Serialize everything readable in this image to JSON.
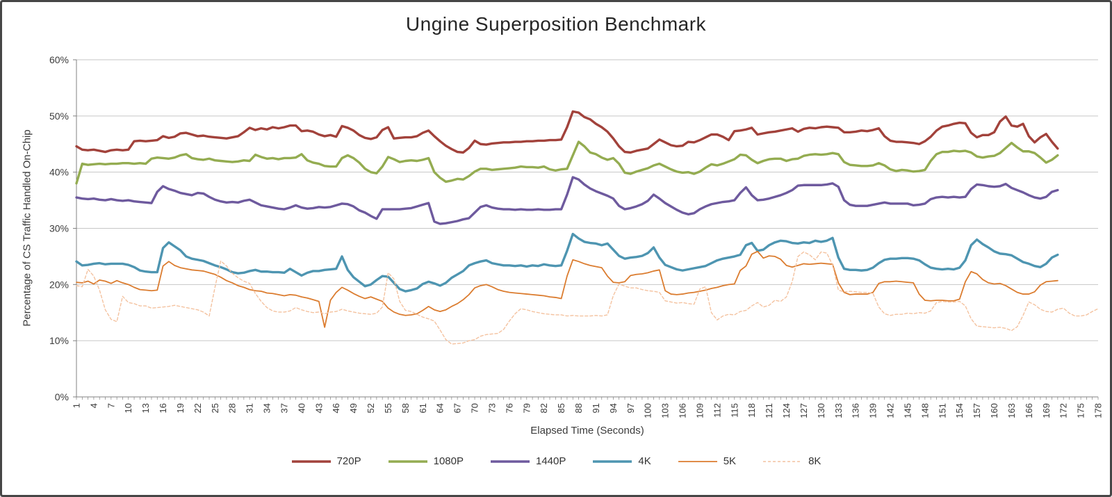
{
  "chart_data": {
    "type": "line",
    "title": "Ungine Superposition Benchmark",
    "xlabel": "Elapsed Time (Seconds)",
    "ylabel": "Percentage of CS Traffic Handled On-Chip",
    "ylim": [
      0,
      60
    ],
    "y_tick_labels": [
      "0%",
      "10%",
      "20%",
      "30%",
      "40%",
      "50%",
      "60%"
    ],
    "x_ticks": {
      "start": 1,
      "end": 178,
      "step": 3
    },
    "x_count": 178,
    "grid": "horizontal",
    "legend_position": "bottom",
    "colors": {
      "grid": "#C6C6C6",
      "axis": "#808080",
      "tick_text": "#3B3B3B",
      "title_text": "#262626",
      "frame_border": "#464646",
      "background": "#FFFFFF"
    },
    "series": [
      {
        "name": "720P",
        "color": "#A2423B",
        "width": 3.4,
        "dash": null,
        "values": [
          44.6,
          44.0,
          43.9,
          44.0,
          43.8,
          43.6,
          43.9,
          44.0,
          43.9,
          44.0,
          45.5,
          45.6,
          45.5,
          45.6,
          45.7,
          46.4,
          46.1,
          46.3,
          46.9,
          47.0,
          46.7,
          46.4,
          46.5,
          46.3,
          46.2,
          46.1,
          46.0,
          46.2,
          46.4,
          47.1,
          47.9,
          47.5,
          47.8,
          47.6,
          48.0,
          47.8,
          48.0,
          48.3,
          48.3,
          47.3,
          47.4,
          47.2,
          46.7,
          46.4,
          46.6,
          46.3,
          48.2,
          47.9,
          47.4,
          46.6,
          46.1,
          45.9,
          46.2,
          47.5,
          48.0,
          46.0,
          46.1,
          46.2,
          46.2,
          46.4,
          47.0,
          47.4,
          46.4,
          45.5,
          44.7,
          44.1,
          43.6,
          43.5,
          44.3,
          45.6,
          45.0,
          44.9,
          45.1,
          45.2,
          45.3,
          45.3,
          45.4,
          45.4,
          45.5,
          45.5,
          45.6,
          45.6,
          45.7,
          45.7,
          45.8,
          48.0,
          50.8,
          50.6,
          49.8,
          49.4,
          48.6,
          48.0,
          47.2,
          46.0,
          44.6,
          43.6,
          43.5,
          43.8,
          44.0,
          44.2,
          45.0,
          45.8,
          45.3,
          44.8,
          44.6,
          44.7,
          45.4,
          45.3,
          45.7,
          46.2,
          46.7,
          46.7,
          46.3,
          45.7,
          47.3,
          47.4,
          47.6,
          47.9,
          46.7,
          46.9,
          47.1,
          47.2,
          47.4,
          47.6,
          47.8,
          47.2,
          47.7,
          47.9,
          47.8,
          48.0,
          48.1,
          48.0,
          47.9,
          47.1,
          47.1,
          47.2,
          47.4,
          47.3,
          47.5,
          47.8,
          46.4,
          45.6,
          45.4,
          45.4,
          45.3,
          45.2,
          45.0,
          45.5,
          46.3,
          47.4,
          48.1,
          48.3,
          48.6,
          48.8,
          48.7,
          47.0,
          46.2,
          46.6,
          46.6,
          47.1,
          49.0,
          49.9,
          48.3,
          48.1,
          48.6,
          46.4,
          45.3,
          46.2,
          46.8,
          45.4,
          44.2
        ]
      },
      {
        "name": "1080P",
        "color": "#94AC51",
        "width": 3.4,
        "dash": null,
        "values": [
          38.0,
          41.5,
          41.3,
          41.4,
          41.5,
          41.4,
          41.5,
          41.5,
          41.6,
          41.6,
          41.5,
          41.6,
          41.5,
          42.4,
          42.6,
          42.5,
          42.4,
          42.6,
          43.0,
          43.2,
          42.5,
          42.3,
          42.2,
          42.4,
          42.1,
          42.0,
          41.9,
          41.8,
          41.9,
          42.1,
          42.0,
          43.1,
          42.7,
          42.4,
          42.5,
          42.3,
          42.5,
          42.5,
          42.6,
          43.2,
          42.1,
          41.7,
          41.5,
          41.1,
          41.0,
          41.0,
          42.5,
          43.0,
          42.5,
          41.7,
          40.6,
          40.0,
          39.8,
          41.0,
          42.7,
          42.3,
          41.8,
          42.0,
          42.1,
          42.0,
          42.2,
          42.5,
          40.0,
          39.0,
          38.3,
          38.5,
          38.8,
          38.7,
          39.3,
          40.1,
          40.6,
          40.6,
          40.4,
          40.5,
          40.6,
          40.7,
          40.8,
          41.0,
          40.9,
          40.9,
          40.8,
          41.0,
          40.5,
          40.3,
          40.5,
          40.6,
          43.0,
          45.4,
          44.6,
          43.5,
          43.2,
          42.6,
          42.2,
          42.5,
          41.5,
          39.9,
          39.7,
          40.1,
          40.4,
          40.7,
          41.2,
          41.5,
          41.0,
          40.5,
          40.1,
          39.9,
          40.0,
          39.7,
          40.1,
          40.8,
          41.4,
          41.2,
          41.5,
          41.9,
          42.3,
          43.1,
          43.0,
          42.2,
          41.6,
          42.0,
          42.3,
          42.4,
          42.4,
          42.0,
          42.3,
          42.4,
          42.9,
          43.1,
          43.2,
          43.1,
          43.2,
          43.4,
          43.2,
          41.8,
          41.3,
          41.2,
          41.1,
          41.1,
          41.2,
          41.6,
          41.2,
          40.5,
          40.2,
          40.4,
          40.3,
          40.1,
          40.2,
          40.4,
          42.0,
          43.2,
          43.6,
          43.6,
          43.8,
          43.7,
          43.8,
          43.5,
          42.8,
          42.6,
          42.8,
          42.9,
          43.4,
          44.3,
          45.2,
          44.4,
          43.7,
          43.7,
          43.4,
          42.6,
          41.7,
          42.2,
          43.0
        ]
      },
      {
        "name": "1440P",
        "color": "#6E5A9E",
        "width": 3.4,
        "dash": null,
        "values": [
          35.5,
          35.3,
          35.2,
          35.3,
          35.1,
          35.0,
          35.2,
          35.0,
          34.9,
          35.0,
          34.8,
          34.7,
          34.6,
          34.5,
          36.5,
          37.5,
          37.0,
          36.7,
          36.3,
          36.1,
          35.9,
          36.3,
          36.2,
          35.6,
          35.1,
          34.8,
          34.6,
          34.7,
          34.6,
          34.9,
          35.1,
          34.6,
          34.1,
          33.9,
          33.7,
          33.5,
          33.4,
          33.7,
          34.1,
          33.7,
          33.5,
          33.6,
          33.8,
          33.7,
          33.8,
          34.1,
          34.4,
          34.3,
          33.9,
          33.2,
          32.8,
          32.2,
          31.7,
          33.4,
          33.4,
          33.4,
          33.4,
          33.5,
          33.6,
          33.9,
          34.2,
          34.5,
          31.2,
          30.8,
          30.9,
          31.1,
          31.3,
          31.6,
          31.8,
          32.8,
          33.8,
          34.1,
          33.7,
          33.5,
          33.4,
          33.4,
          33.3,
          33.4,
          33.3,
          33.3,
          33.4,
          33.3,
          33.3,
          33.4,
          33.4,
          36.0,
          39.1,
          38.7,
          37.8,
          37.1,
          36.6,
          36.2,
          35.8,
          35.3,
          34.0,
          33.4,
          33.6,
          33.9,
          34.3,
          34.9,
          36.0,
          35.3,
          34.5,
          33.9,
          33.3,
          32.8,
          32.5,
          32.7,
          33.4,
          33.9,
          34.3,
          34.5,
          34.7,
          34.8,
          35.0,
          36.3,
          37.3,
          35.9,
          35.0,
          35.1,
          35.3,
          35.6,
          35.9,
          36.3,
          36.8,
          37.6,
          37.7,
          37.7,
          37.7,
          37.7,
          37.8,
          38.0,
          37.4,
          35.0,
          34.2,
          34.0,
          34.0,
          34.0,
          34.2,
          34.4,
          34.6,
          34.4,
          34.4,
          34.4,
          34.4,
          34.1,
          34.2,
          34.4,
          35.2,
          35.5,
          35.6,
          35.5,
          35.6,
          35.5,
          35.6,
          37.0,
          37.8,
          37.7,
          37.5,
          37.4,
          37.5,
          37.9,
          37.2,
          36.8,
          36.4,
          35.9,
          35.5,
          35.3,
          35.6,
          36.5,
          36.8
        ]
      },
      {
        "name": "4K",
        "color": "#4E95B1",
        "width": 3.4,
        "dash": null,
        "values": [
          24.1,
          23.4,
          23.5,
          23.7,
          23.8,
          23.6,
          23.7,
          23.7,
          23.7,
          23.5,
          23.1,
          22.5,
          22.3,
          22.2,
          22.2,
          26.5,
          27.5,
          26.8,
          26.1,
          25.0,
          24.6,
          24.4,
          24.2,
          23.8,
          23.4,
          23.1,
          22.7,
          22.2,
          22.0,
          22.1,
          22.4,
          22.6,
          22.3,
          22.3,
          22.2,
          22.2,
          22.1,
          22.8,
          22.2,
          21.6,
          22.1,
          22.4,
          22.4,
          22.6,
          22.7,
          22.8,
          25.0,
          22.6,
          21.3,
          20.5,
          19.7,
          20.0,
          20.8,
          21.5,
          21.4,
          20.3,
          19.2,
          18.8,
          19.0,
          19.3,
          20.1,
          20.5,
          20.2,
          19.8,
          20.3,
          21.2,
          21.8,
          22.4,
          23.4,
          23.8,
          24.1,
          24.3,
          23.8,
          23.6,
          23.4,
          23.4,
          23.3,
          23.4,
          23.2,
          23.4,
          23.3,
          23.6,
          23.4,
          23.3,
          23.4,
          26.0,
          29.0,
          28.2,
          27.6,
          27.4,
          27.3,
          27.0,
          27.3,
          26.2,
          25.1,
          24.6,
          24.8,
          24.9,
          25.1,
          25.6,
          26.6,
          24.8,
          23.5,
          23.1,
          22.7,
          22.5,
          22.7,
          22.9,
          23.1,
          23.3,
          23.8,
          24.3,
          24.6,
          24.8,
          25.0,
          25.3,
          27.0,
          27.4,
          26.0,
          26.2,
          27.0,
          27.5,
          27.8,
          27.7,
          27.4,
          27.3,
          27.5,
          27.4,
          27.8,
          27.6,
          27.8,
          28.3,
          24.8,
          22.8,
          22.6,
          22.6,
          22.5,
          22.6,
          23.0,
          23.8,
          24.4,
          24.6,
          24.6,
          24.7,
          24.7,
          24.6,
          24.3,
          23.6,
          23.0,
          22.8,
          22.7,
          22.8,
          22.7,
          23.0,
          24.3,
          27.0,
          28.0,
          27.2,
          26.6,
          25.9,
          25.5,
          25.4,
          25.2,
          24.6,
          24.0,
          23.7,
          23.3,
          23.1,
          23.7,
          24.8,
          25.3
        ]
      },
      {
        "name": "5K",
        "color": "#DB7C2F",
        "width": 1.8,
        "dash": null,
        "values": [
          20.4,
          20.3,
          20.6,
          20.1,
          20.8,
          20.6,
          20.2,
          20.7,
          20.3,
          20.0,
          19.5,
          19.1,
          19.0,
          18.9,
          19.0,
          23.3,
          24.1,
          23.4,
          23.0,
          22.8,
          22.6,
          22.5,
          22.4,
          22.1,
          21.8,
          21.3,
          20.7,
          20.3,
          19.8,
          19.5,
          19.1,
          18.9,
          18.8,
          18.5,
          18.4,
          18.2,
          18.0,
          18.2,
          18.1,
          17.8,
          17.6,
          17.3,
          17.0,
          12.4,
          17.2,
          18.6,
          19.5,
          19.0,
          18.4,
          17.9,
          17.5,
          17.8,
          17.4,
          17.0,
          15.8,
          15.1,
          14.7,
          14.5,
          14.6,
          14.8,
          15.4,
          16.1,
          15.5,
          15.2,
          15.5,
          16.1,
          16.6,
          17.3,
          18.2,
          19.4,
          19.8,
          20.0,
          19.6,
          19.1,
          18.8,
          18.6,
          18.5,
          18.4,
          18.3,
          18.2,
          18.1,
          18.0,
          17.8,
          17.7,
          17.5,
          21.5,
          24.4,
          24.1,
          23.7,
          23.4,
          23.2,
          23.0,
          21.5,
          20.4,
          20.3,
          20.5,
          21.6,
          21.8,
          21.9,
          22.1,
          22.4,
          22.6,
          18.9,
          18.3,
          18.2,
          18.3,
          18.5,
          18.6,
          18.8,
          19.0,
          19.3,
          19.5,
          19.8,
          20.0,
          20.1,
          22.5,
          23.3,
          25.4,
          25.9,
          24.7,
          25.1,
          25.0,
          24.5,
          23.4,
          23.1,
          23.4,
          23.7,
          23.6,
          23.7,
          23.8,
          23.7,
          23.6,
          20.3,
          18.6,
          18.2,
          18.3,
          18.3,
          18.3,
          18.6,
          20.2,
          20.5,
          20.5,
          20.6,
          20.5,
          20.4,
          20.3,
          18.3,
          17.2,
          17.1,
          17.2,
          17.2,
          17.1,
          17.1,
          17.4,
          20.5,
          22.3,
          21.9,
          20.9,
          20.3,
          20.1,
          20.2,
          19.8,
          19.2,
          18.6,
          18.3,
          18.3,
          18.7,
          19.9,
          20.5,
          20.6,
          20.7
        ]
      },
      {
        "name": "8K",
        "color": "#F4C29F",
        "width": 1.4,
        "dash": "4 3",
        "values": [
          19.8,
          19.6,
          22.7,
          21.5,
          19.0,
          15.5,
          13.8,
          13.4,
          17.9,
          16.8,
          16.6,
          16.2,
          16.2,
          15.8,
          15.9,
          16.0,
          16.1,
          16.3,
          16.1,
          15.9,
          15.7,
          15.5,
          15.1,
          14.4,
          19.5,
          24.2,
          23.3,
          22.0,
          21.2,
          20.6,
          20.2,
          18.4,
          17.0,
          15.9,
          15.3,
          15.1,
          15.1,
          15.3,
          15.9,
          15.5,
          15.2,
          15.0,
          15.1,
          14.8,
          15.1,
          15.2,
          15.6,
          15.3,
          15.1,
          14.9,
          14.8,
          14.7,
          14.9,
          16.0,
          22.1,
          21.0,
          17.0,
          15.4,
          15.2,
          14.7,
          14.2,
          13.9,
          13.5,
          11.9,
          10.2,
          9.4,
          9.5,
          9.6,
          10.0,
          10.2,
          10.8,
          11.1,
          11.2,
          11.3,
          12.0,
          13.5,
          14.8,
          15.7,
          15.5,
          15.2,
          15.0,
          14.8,
          14.7,
          14.6,
          14.6,
          14.4,
          14.5,
          14.4,
          14.4,
          14.4,
          14.5,
          14.4,
          14.6,
          18.0,
          20.1,
          19.7,
          19.4,
          19.4,
          19.1,
          18.9,
          18.8,
          18.6,
          17.1,
          16.9,
          16.7,
          16.8,
          16.6,
          16.5,
          19.2,
          19.6,
          15.0,
          13.7,
          14.4,
          14.7,
          14.6,
          15.2,
          15.4,
          16.2,
          16.8,
          16.0,
          16.3,
          17.2,
          17.0,
          17.8,
          20.5,
          25.0,
          25.8,
          25.3,
          24.4,
          25.8,
          25.6,
          23.5,
          19.0,
          18.7,
          18.8,
          18.7,
          18.6,
          18.6,
          18.4,
          16.0,
          14.8,
          14.5,
          14.7,
          14.7,
          14.9,
          14.8,
          15.0,
          14.9,
          15.3,
          16.8,
          17.0,
          16.9,
          16.9,
          17.0,
          16.2,
          13.9,
          12.6,
          12.5,
          12.4,
          12.3,
          12.4,
          12.2,
          11.8,
          12.5,
          14.5,
          16.9,
          16.4,
          15.6,
          15.2,
          15.1,
          15.6,
          15.8,
          14.9,
          14.4,
          14.4,
          14.6,
          15.2,
          15.7
        ]
      }
    ]
  }
}
